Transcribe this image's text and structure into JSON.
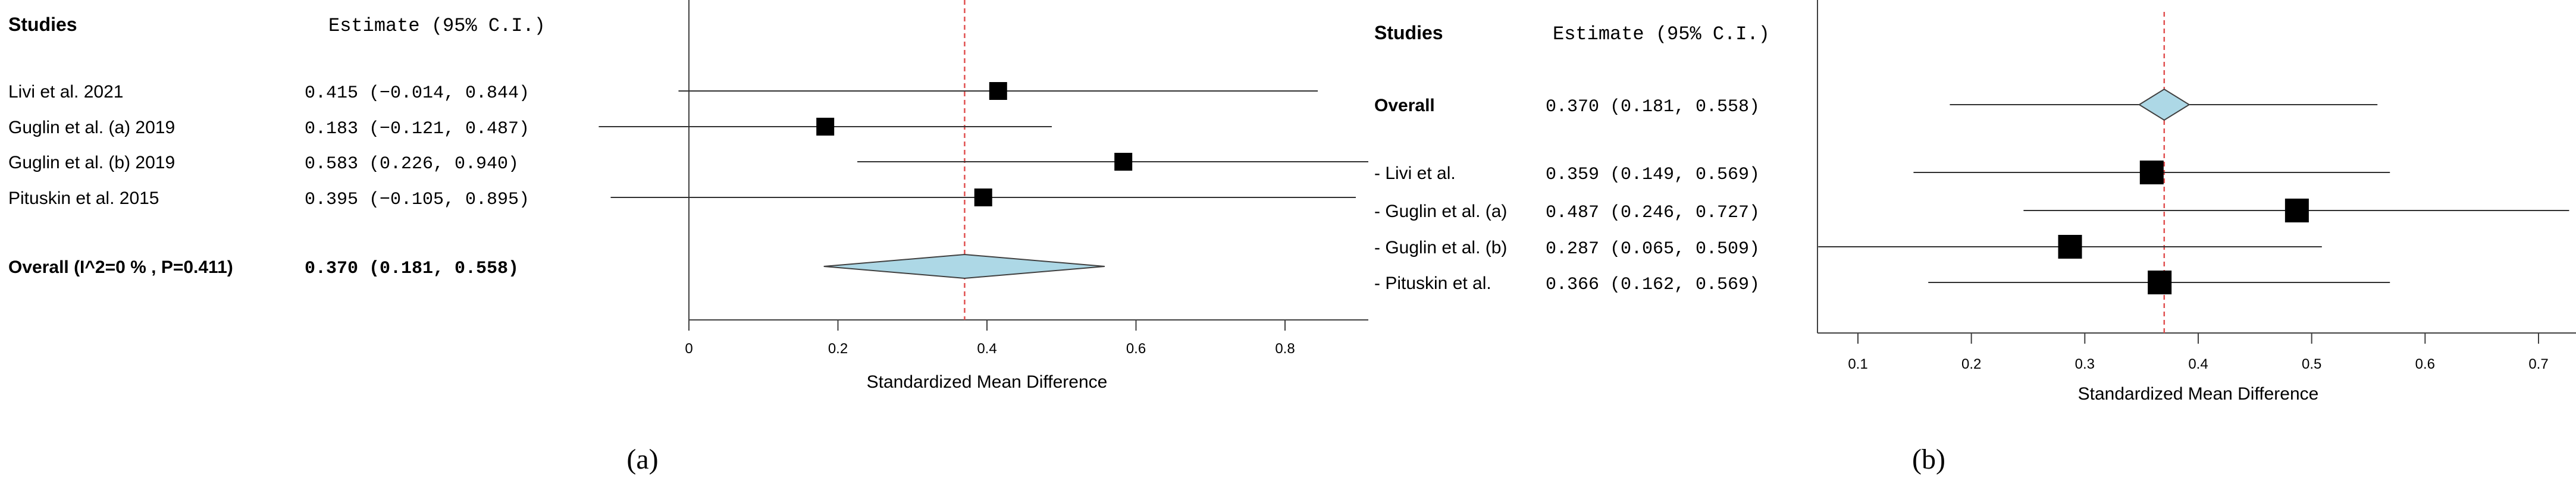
{
  "colors": {
    "marker": "#000000",
    "diamond_fill": "#add8e6",
    "diamond_stroke": "#404040",
    "ref_line": "#e05050",
    "axis": "#404040",
    "ci_line": "#303030"
  },
  "chart_data": [
    {
      "type": "forest",
      "panel_label": "(a)",
      "header_study": "Studies",
      "header_estimate": "Estimate (95% C.I.)",
      "xlabel": "Standardized Mean Difference",
      "xlim": [
        0,
        0.8
      ],
      "xticks": [
        "0",
        "0.2",
        "0.4",
        "0.6",
        "0.8"
      ],
      "reference_line": 0.37,
      "studies": [
        {
          "name": "Livi et al. 2021",
          "estimate": 0.415,
          "lower": -0.014,
          "upper": 0.844,
          "label": "0.415 (−0.014, 0.844)"
        },
        {
          "name": "Guglin et al. (a) 2019",
          "estimate": 0.183,
          "lower": -0.121,
          "upper": 0.487,
          "label": "0.183 (−0.121, 0.487)"
        },
        {
          "name": "Guglin et al. (b) 2019",
          "estimate": 0.583,
          "lower": 0.226,
          "upper": 0.94,
          "label": "0.583  (0.226, 0.940)"
        },
        {
          "name": "Pituskin et al. 2015",
          "estimate": 0.395,
          "lower": -0.105,
          "upper": 0.895,
          "label": "0.395 (−0.105, 0.895)"
        }
      ],
      "overall": {
        "name": "Overall (I^2=0 % , P=0.411)",
        "estimate": 0.37,
        "lower": 0.181,
        "upper": 0.558,
        "label": "0.370   (0.181, 0.558)"
      }
    },
    {
      "type": "forest",
      "panel_label": "(b)",
      "header_study": "Studies",
      "header_estimate": "Estimate (95% C.I.)",
      "xlabel": "Standardized Mean Difference",
      "xlim": [
        0.1,
        0.7
      ],
      "xticks": [
        "0.1",
        "0.2",
        "0.3",
        "0.4",
        "0.5",
        "0.6",
        "0.7"
      ],
      "reference_line": 0.37,
      "overall": {
        "name": "Overall",
        "estimate": 0.37,
        "lower": 0.181,
        "upper": 0.558,
        "label": "0.370 (0.181, 0.558)"
      },
      "studies": [
        {
          "name": "- Livi et al.",
          "estimate": 0.359,
          "lower": 0.149,
          "upper": 0.569,
          "label": "0.359 (0.149, 0.569)"
        },
        {
          "name": "- Guglin et al. (a)",
          "estimate": 0.487,
          "lower": 0.246,
          "upper": 0.727,
          "label": "0.487 (0.246, 0.727)"
        },
        {
          "name": "- Guglin et al. (b)",
          "estimate": 0.287,
          "lower": 0.065,
          "upper": 0.509,
          "label": "0.287 (0.065, 0.509)"
        },
        {
          "name": "- Pituskin et al.",
          "estimate": 0.366,
          "lower": 0.162,
          "upper": 0.569,
          "label": "0.366 (0.162, 0.569)"
        }
      ]
    }
  ]
}
